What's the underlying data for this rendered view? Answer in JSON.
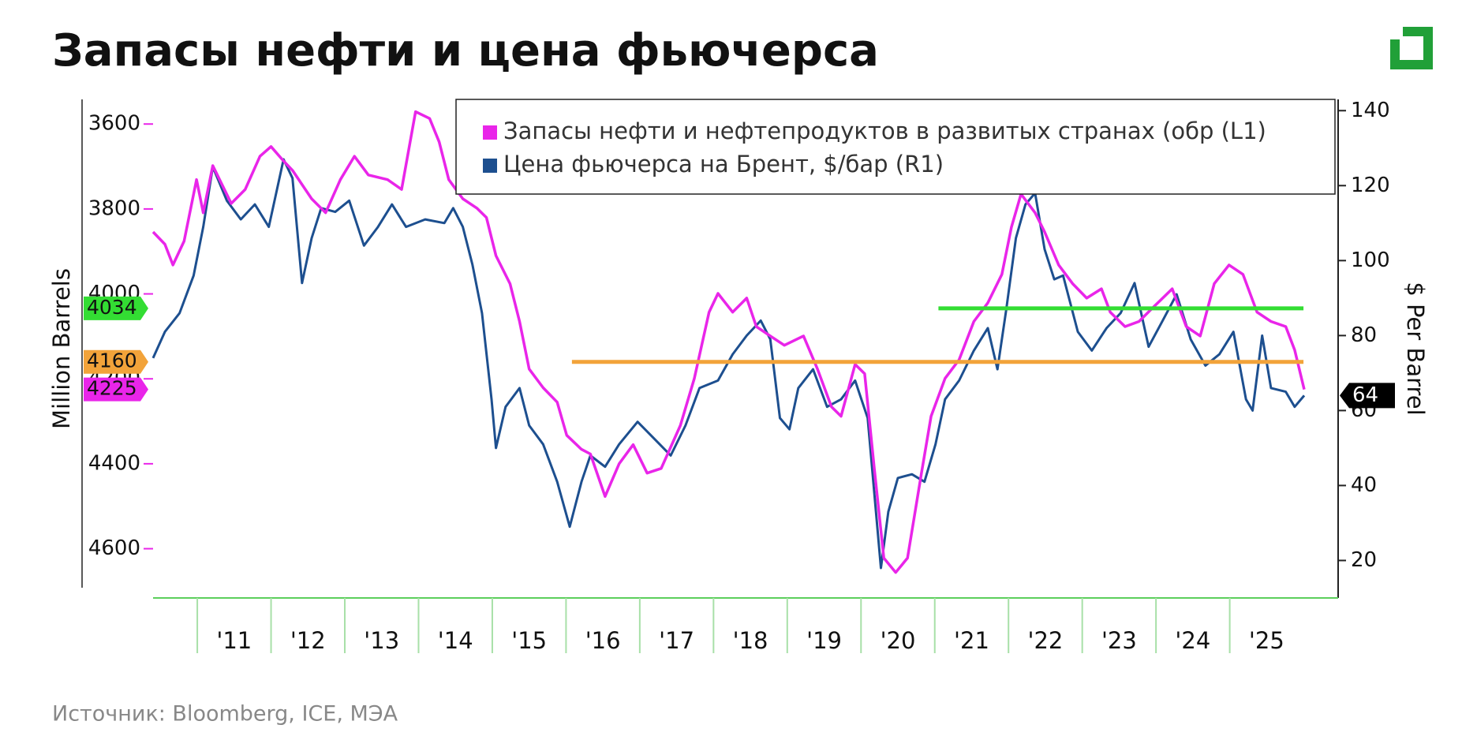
{
  "chart_data": {
    "type": "line",
    "title": "Запасы нефти и цена фьючерса",
    "source": "Источник: Bloomberg, ICE, МЭА",
    "ylabel": "Million Barrels",
    "y2label": "$ Per Barrel",
    "xlim": [
      2010.4,
      2026.47
    ],
    "xticks": [
      {
        "value": 2011,
        "label": "'11"
      },
      {
        "value": 2012,
        "label": "'12"
      },
      {
        "value": 2013,
        "label": "'13"
      },
      {
        "value": 2014,
        "label": "'14"
      },
      {
        "value": 2015,
        "label": "'15"
      },
      {
        "value": 2016,
        "label": "'16"
      },
      {
        "value": 2017,
        "label": "'17"
      },
      {
        "value": 2018,
        "label": "'18"
      },
      {
        "value": 2019,
        "label": "'19"
      },
      {
        "value": 2020,
        "label": "'20"
      },
      {
        "value": 2021,
        "label": "'21"
      },
      {
        "value": 2022,
        "label": "'22"
      },
      {
        "value": 2023,
        "label": "'23"
      },
      {
        "value": 2024,
        "label": "'24"
      },
      {
        "value": 2025,
        "label": "'25"
      }
    ],
    "ylim": [
      4716,
      3542
    ],
    "yticks": [
      3600,
      3800,
      4000,
      4200,
      4400,
      4600
    ],
    "y2lim": [
      10,
      143
    ],
    "y2ticks": [
      20,
      40,
      60,
      80,
      100,
      120,
      140
    ],
    "series": [
      {
        "name": "Запасы нефти и нефтепродуктов в развитых странах (обр (L1)",
        "color": "#e925e9",
        "axis": "y",
        "x": [
          2010.4,
          2010.56,
          2010.67,
          2010.82,
          2010.99,
          2011.08,
          2011.21,
          2011.46,
          2011.65,
          2011.85,
          2012.0,
          2012.17,
          2012.29,
          2012.55,
          2012.74,
          2012.94,
          2013.13,
          2013.32,
          2013.58,
          2013.77,
          2013.96,
          2014.15,
          2014.28,
          2014.41,
          2014.6,
          2014.79,
          2014.92,
          2015.05,
          2015.24,
          2015.37,
          2015.5,
          2015.69,
          2015.88,
          2016.01,
          2016.21,
          2016.33,
          2016.53,
          2016.72,
          2016.91,
          2017.1,
          2017.29,
          2017.55,
          2017.74,
          2017.94,
          2018.06,
          2018.26,
          2018.45,
          2018.58,
          2018.77,
          2018.96,
          2019.22,
          2019.41,
          2019.6,
          2019.73,
          2019.92,
          2020.05,
          2020.18,
          2020.31,
          2020.47,
          2020.63,
          2020.82,
          2020.95,
          2021.14,
          2021.33,
          2021.53,
          2021.72,
          2021.91,
          2022.04,
          2022.17,
          2022.36,
          2022.49,
          2022.68,
          2022.87,
          2023.06,
          2023.26,
          2023.38,
          2023.58,
          2023.77,
          2023.96,
          2024.22,
          2024.41,
          2024.6,
          2024.79,
          2024.99,
          2025.18,
          2025.37,
          2025.56,
          2025.76,
          2025.88,
          2026.01
        ],
        "values": [
          3854,
          3883,
          3932,
          3876,
          3731,
          3809,
          3698,
          3787,
          3754,
          3676,
          3653,
          3687,
          3709,
          3776,
          3809,
          3731,
          3676,
          3720,
          3731,
          3754,
          3571,
          3587,
          3642,
          3731,
          3776,
          3798,
          3820,
          3910,
          3976,
          4065,
          4177,
          4221,
          4255,
          4333,
          4366,
          4377,
          4477,
          4400,
          4355,
          4422,
          4411,
          4310,
          4199,
          4043,
          3999,
          4043,
          4010,
          4077,
          4099,
          4121,
          4099,
          4177,
          4266,
          4288,
          4166,
          4188,
          4411,
          4622,
          4656,
          4622,
          4422,
          4288,
          4199,
          4155,
          4065,
          4021,
          3954,
          3843,
          3765,
          3809,
          3854,
          3932,
          3976,
          4010,
          3988,
          4043,
          4077,
          4065,
          4032,
          3988,
          4077,
          4099,
          3976,
          3932,
          3954,
          4043,
          4065,
          4077,
          4132,
          4225
        ]
      },
      {
        "name": "Цена фьючерса на Брент, $/бар (R1)",
        "color": "#1d4f8f",
        "axis": "y2",
        "x": [
          2010.4,
          2010.56,
          2010.76,
          2010.95,
          2011.08,
          2011.21,
          2011.4,
          2011.59,
          2011.78,
          2011.97,
          2012.17,
          2012.29,
          2012.42,
          2012.55,
          2012.68,
          2012.87,
          2013.06,
          2013.26,
          2013.45,
          2013.64,
          2013.83,
          2014.09,
          2014.35,
          2014.47,
          2014.6,
          2014.73,
          2014.86,
          2014.99,
          2015.05,
          2015.18,
          2015.37,
          2015.5,
          2015.69,
          2015.88,
          2016.05,
          2016.21,
          2016.33,
          2016.53,
          2016.72,
          2016.97,
          2017.17,
          2017.42,
          2017.62,
          2017.81,
          2018.06,
          2018.26,
          2018.45,
          2018.64,
          2018.77,
          2018.9,
          2019.03,
          2019.15,
          2019.35,
          2019.54,
          2019.73,
          2019.92,
          2020.09,
          2020.18,
          2020.27,
          2020.37,
          2020.5,
          2020.69,
          2020.86,
          2021.01,
          2021.14,
          2021.33,
          2021.53,
          2021.72,
          2021.85,
          2021.97,
          2022.1,
          2022.23,
          2022.36,
          2022.49,
          2022.62,
          2022.74,
          2022.94,
          2023.13,
          2023.33,
          2023.52,
          2023.71,
          2023.9,
          2024.09,
          2024.28,
          2024.47,
          2024.67,
          2024.86,
          2025.05,
          2025.22,
          2025.31,
          2025.44,
          2025.56,
          2025.76,
          2025.88,
          2026.01
        ],
        "values": [
          74,
          81,
          86,
          96,
          109,
          125,
          116,
          111,
          115,
          109,
          127,
          122,
          94,
          106,
          114,
          113,
          116,
          104,
          109,
          115,
          109,
          111,
          110,
          114,
          109,
          99,
          86,
          63,
          50,
          61,
          66,
          56,
          51,
          41,
          29,
          41,
          48,
          45,
          51,
          57,
          53,
          48,
          56,
          66,
          68,
          75,
          80,
          84,
          79,
          58,
          55,
          66,
          71,
          61,
          63,
          68,
          58,
          38,
          18,
          33,
          42,
          43,
          41,
          51,
          63,
          68,
          76,
          82,
          71,
          87,
          106,
          115,
          118,
          103,
          95,
          96,
          81,
          76,
          82,
          86,
          94,
          77,
          84,
          91,
          79,
          72,
          75,
          81,
          63,
          60,
          80,
          66,
          65,
          61,
          64
        ]
      }
    ],
    "markers": [
      {
        "value": 4034,
        "color": "#33dd33",
        "axis": "y",
        "line_from": 2021.05,
        "line_to": 2026.0
      },
      {
        "value": 4160,
        "color": "#f2a33a",
        "axis": "y",
        "line_from": 2016.08,
        "line_to": 2026.0
      },
      {
        "value": 4225,
        "color": "#e925e9",
        "axis": "y"
      },
      {
        "value": 64,
        "color": "#000000",
        "axis": "y2"
      }
    ]
  }
}
